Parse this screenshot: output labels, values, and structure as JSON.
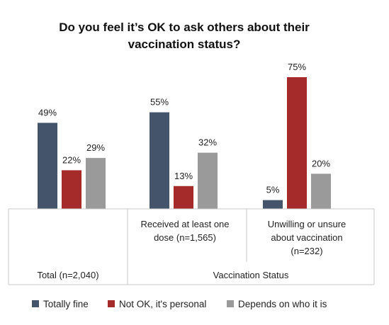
{
  "chart_data": {
    "type": "bar",
    "title_lines": [
      "Do you feel it’s OK to ask others about their",
      "vaccination status?"
    ],
    "groups": [
      {
        "label_lines": [
          "Total (n=2,040)"
        ]
      },
      {
        "label_lines": [
          "Received at least one",
          "dose (n=1,565)"
        ]
      },
      {
        "label_lines": [
          "Unwilling or unsure",
          "about vaccination",
          "(n=232)"
        ]
      }
    ],
    "group_header": "Vaccination Status",
    "series": [
      {
        "name": "Totally fine",
        "color": "#44546a",
        "values": [
          49,
          55,
          5
        ],
        "labels": [
          "49%",
          "55%",
          "5%"
        ]
      },
      {
        "name": "Not OK, it's personal",
        "color": "#a52a2a",
        "values": [
          22,
          13,
          75
        ],
        "labels": [
          "22%",
          "13%",
          "75%"
        ]
      },
      {
        "name": "Depends on who it is",
        "color": "#9a9a9a",
        "values": [
          29,
          32,
          20
        ],
        "labels": [
          "29%",
          "32%",
          "20%"
        ]
      }
    ],
    "ylim": [
      0,
      100
    ],
    "legend_position": "bottom"
  }
}
